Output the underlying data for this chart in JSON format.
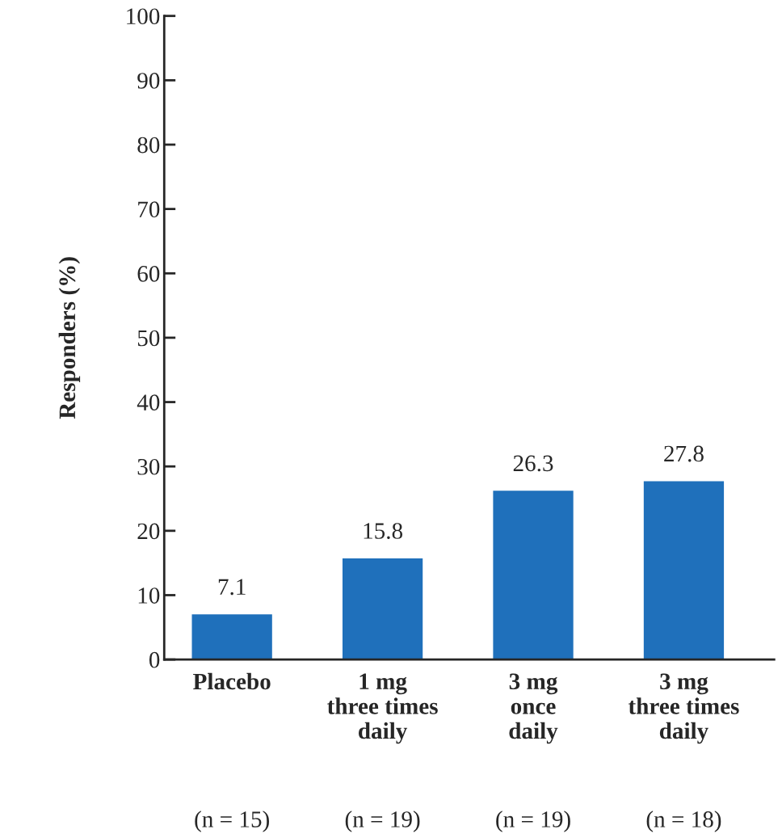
{
  "chart_data": {
    "type": "bar",
    "ylabel": "Responders (%)",
    "categories": [
      "Placebo",
      "1 mg\nthree times\ndaily",
      "3 mg\nonce\ndaily",
      "3 mg\nthree times\ndaily"
    ],
    "values": [
      7.1,
      15.8,
      26.3,
      27.8
    ],
    "color": "#1f70bb",
    "ylim": [
      0,
      100
    ],
    "yticks": [
      0,
      10,
      20,
      30,
      40,
      50,
      60,
      70,
      80,
      90,
      100
    ],
    "data_labels": true,
    "grid": false,
    "annotations": [
      "(n = 15)",
      "(n = 19)",
      "(n = 19)",
      "(n = 18)"
    ]
  }
}
